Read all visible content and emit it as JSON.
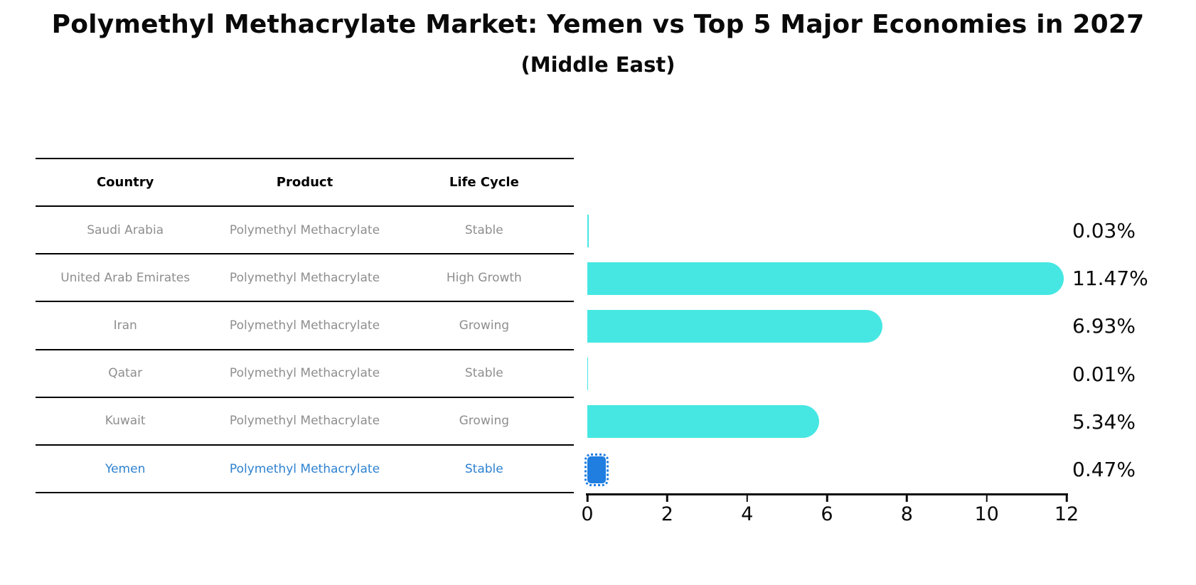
{
  "title": "Polymethyl Methacrylate Market: Yemen vs Top 5 Major Economies in 2027",
  "subtitle": "(Middle East)",
  "table": {
    "headers": [
      "Country",
      "Product",
      "Life Cycle"
    ],
    "rows": [
      {
        "country": "Saudi Arabia",
        "product": "Polymethyl Methacrylate",
        "life_cycle": "Stable",
        "value": 0.03,
        "value_label": "0.03%",
        "highlight": false
      },
      {
        "country": "United Arab Emirates",
        "product": "Polymethyl Methacrylate",
        "life_cycle": "High Growth",
        "value": 11.47,
        "value_label": "11.47%",
        "highlight": false
      },
      {
        "country": "Iran",
        "product": "Polymethyl Methacrylate",
        "life_cycle": "Growing",
        "value": 6.93,
        "value_label": "6.93%",
        "highlight": false
      },
      {
        "country": "Qatar",
        "product": "Polymethyl Methacrylate",
        "life_cycle": "Stable",
        "value": 0.01,
        "value_label": "0.01%",
        "highlight": false
      },
      {
        "country": "Kuwait",
        "product": "Polymethyl Methacrylate",
        "life_cycle": "Growing",
        "value": 5.34,
        "value_label": "5.34%",
        "highlight": false
      },
      {
        "country": "Yemen",
        "product": "Polymethyl Methacrylate",
        "life_cycle": "Stable",
        "value": 0.47,
        "value_label": "0.47%",
        "highlight": true
      }
    ]
  },
  "chart_data": {
    "type": "bar",
    "orientation": "horizontal",
    "title": "Polymethyl Methacrylate Market: Yemen vs Top 5 Major Economies in 2027",
    "subtitle": "(Middle East)",
    "categories": [
      "Saudi Arabia",
      "United Arab Emirates",
      "Iran",
      "Qatar",
      "Kuwait",
      "Yemen"
    ],
    "values": [
      0.03,
      11.47,
      6.93,
      0.01,
      5.34,
      0.47
    ],
    "value_labels": [
      "0.03%",
      "11.47%",
      "6.93%",
      "0.01%",
      "5.34%",
      "0.47%"
    ],
    "xlabel": "",
    "ylabel": "",
    "xlim": [
      0,
      12
    ],
    "xticks": [
      0,
      2,
      4,
      6,
      8,
      10,
      12
    ],
    "grid": false,
    "legend": false,
    "highlight_index": 5,
    "bar_color": "#46e7e2",
    "highlight_color": "#1f7ee0",
    "highlight_text_color": "#2e82d0",
    "text_color": "#0a0a0a",
    "muted_text_color": "#8e8e8e"
  }
}
